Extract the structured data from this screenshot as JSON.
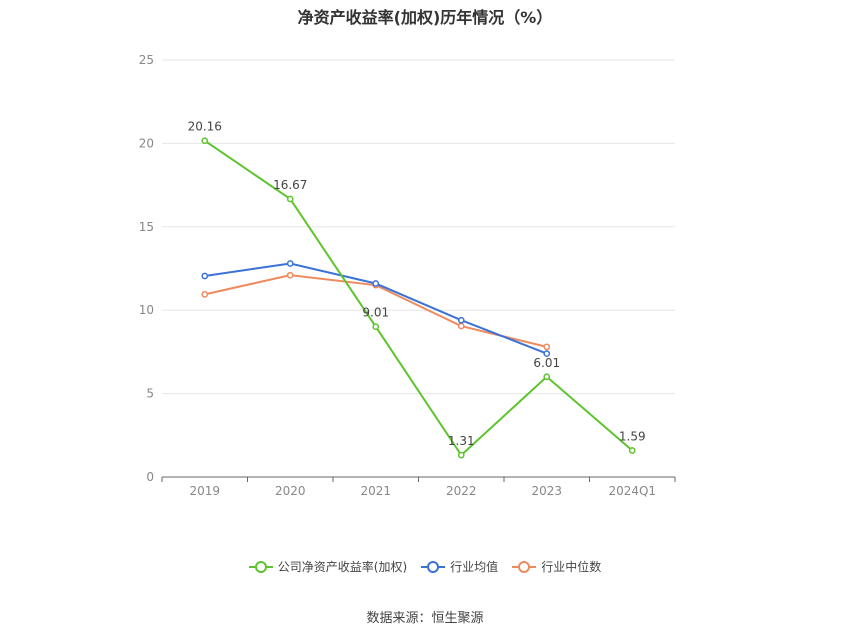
{
  "title": "净资产收益率(加权)历年情况（%）",
  "source": "数据来源：恒生聚源",
  "chart_data": {
    "type": "line",
    "categories": [
      "2019",
      "2020",
      "2021",
      "2022",
      "2023",
      "2024Q1"
    ],
    "ylim": [
      0,
      25
    ],
    "yticks": [
      0,
      5,
      10,
      15,
      20,
      25
    ],
    "grid": true,
    "legend_position": "bottom",
    "series": [
      {
        "name": "公司净资产收益率(加权)",
        "color": "#5ec42e",
        "values": [
          20.16,
          16.67,
          9.01,
          1.31,
          6.01,
          1.59
        ],
        "labels": [
          "20.16",
          "16.67",
          "9.01",
          "1.31",
          "6.01",
          "1.59"
        ]
      },
      {
        "name": "行业均值",
        "color": "#3a72d8",
        "values": [
          12.05,
          12.8,
          11.6,
          9.4,
          7.4,
          null
        ]
      },
      {
        "name": "行业中位数",
        "color": "#ee8a5e",
        "values": [
          10.95,
          12.1,
          11.5,
          9.05,
          7.8,
          null
        ]
      }
    ]
  }
}
